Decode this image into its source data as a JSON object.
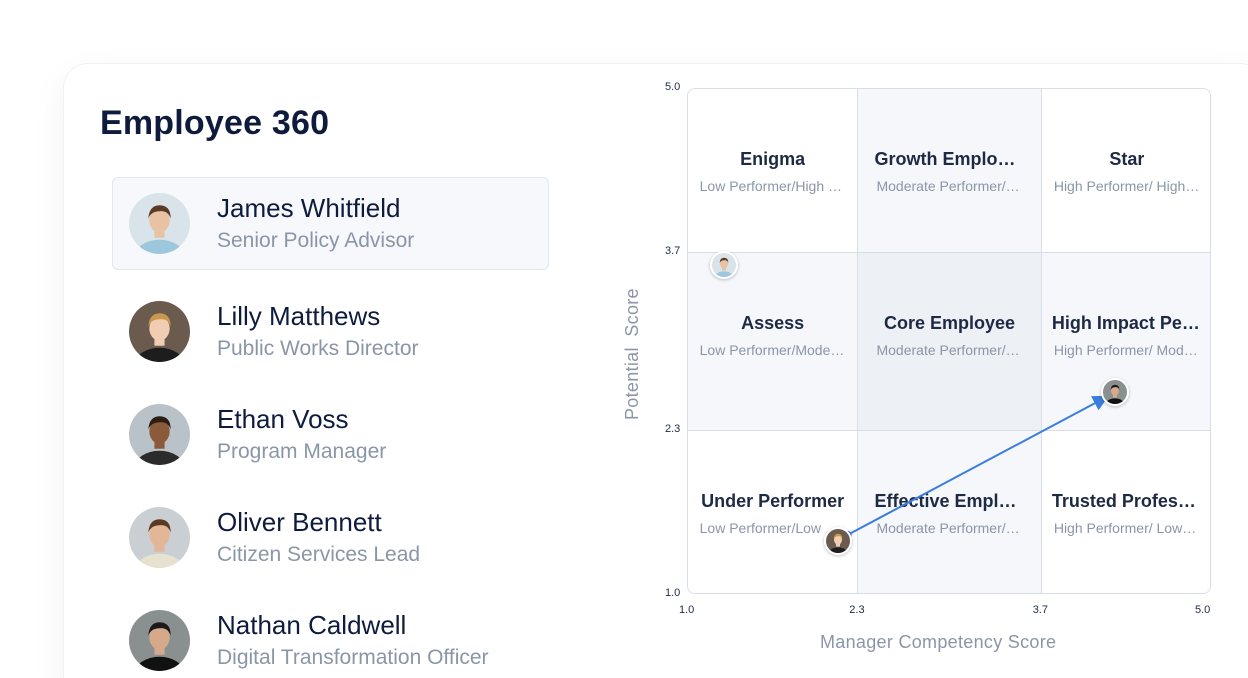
{
  "page": {
    "title": "Employee 360"
  },
  "employees": [
    {
      "name": "James Whitfield",
      "role": "Senior Policy Advisor",
      "selected": true,
      "avatar": "person-avatar"
    },
    {
      "name": "Lilly Matthews",
      "role": "Public Works Director",
      "selected": false,
      "avatar": "person-avatar"
    },
    {
      "name": "Ethan Voss",
      "role": "Program Manager",
      "selected": false,
      "avatar": "person-avatar"
    },
    {
      "name": "Oliver Bennett",
      "role": "Citizen Services Lead",
      "selected": false,
      "avatar": "person-avatar"
    },
    {
      "name": "Nathan Caldwell",
      "role": "Digital Transformation Officer",
      "selected": false,
      "avatar": "person-avatar"
    }
  ],
  "chart_data": {
    "type": "scatter",
    "xlabel": "Manager Competency Score",
    "ylabel": "Potential  Score",
    "xlim": [
      1.0,
      5.0
    ],
    "ylim": [
      1.0,
      5.0
    ],
    "xticks": [
      "1.0",
      "2.3",
      "3.7",
      "5.0"
    ],
    "yticks": [
      "5.0",
      "3.7",
      "2.3",
      "1.0"
    ],
    "x_bounds": [
      1.0,
      2.3,
      3.7,
      5.0
    ],
    "y_bounds": [
      5.0,
      3.7,
      2.3,
      1.0
    ],
    "cells": [
      {
        "label": "Enigma",
        "sub": "Low Performer/High Potential",
        "shade": "#ffffff"
      },
      {
        "label": "Growth Employee",
        "sub": "Moderate Performer/High Potential",
        "shade": "#f5f7fa"
      },
      {
        "label": "Star",
        "sub": "High Performer/ High Potential",
        "shade": "#ffffff"
      },
      {
        "label": "Assess",
        "sub": "Low Performer/Moderate Potential",
        "shade": "#f5f7fa"
      },
      {
        "label": "Core Employee",
        "sub": "Moderate Performer/Moderate Potential",
        "shade": "#edf0f4"
      },
      {
        "label": "High Impact Performer",
        "sub": "High Performer/ Moderate Potential",
        "shade": "#f5f7fa"
      },
      {
        "label": "Under Performer",
        "sub": "Low Performer/Low Potential",
        "shade": "#ffffff"
      },
      {
        "label": "Effective Employee",
        "sub": "Moderate Performer/Low Potential",
        "shade": "#f5f7fa"
      },
      {
        "label": "Trusted Professional",
        "sub": "High Performer/ Low Potential",
        "shade": "#ffffff"
      }
    ],
    "points": [
      {
        "x": 1.28,
        "y": 3.6,
        "avatar": "person-avatar"
      },
      {
        "x": 2.15,
        "y": 1.42,
        "avatar": "person-avatar"
      },
      {
        "x": 4.27,
        "y": 2.6,
        "avatar": "person-avatar"
      }
    ],
    "arrow": {
      "from": [
        2.15,
        1.42
      ],
      "to": [
        4.27,
        2.6
      ],
      "color": "#3b7ddd"
    }
  }
}
